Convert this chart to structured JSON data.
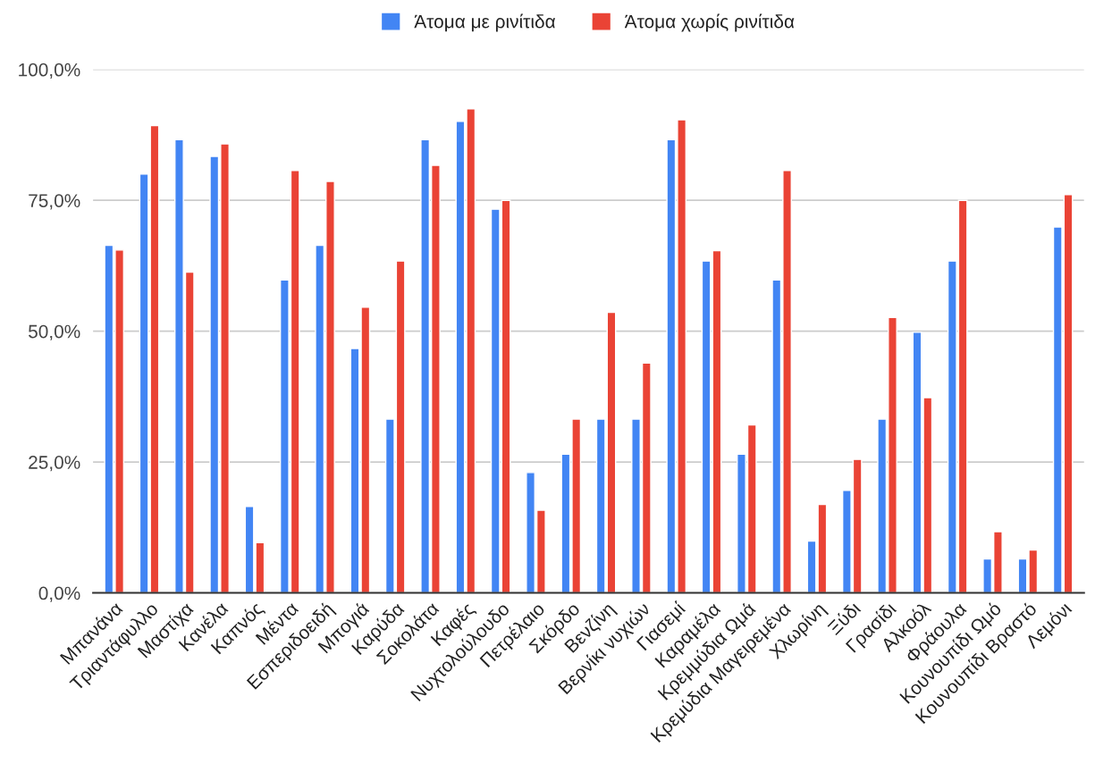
{
  "chart_data": {
    "type": "bar",
    "categories": [
      "Μπανάνα",
      "Τριαντάφυλλο",
      "Μαστίχα",
      "Κανέλα",
      "Καπνός",
      "Μέντα",
      "Εσπεριδοειδή",
      "Μπογιά",
      "Καρύδα",
      "Σοκολάτα",
      "Καφές",
      "Νυχτολούλουδο",
      "Πετρέλαιο",
      "Σκόρδο",
      "Βενζίνη",
      "Βερνίκι νυχιών",
      "Γιασεμί",
      "Καραμέλα",
      "Κρεμμύδια Ωμά",
      "Κρεμύδια Μαγειρεμένα",
      "Χλωρίνη",
      "Ξύδι",
      "Γρασίδι",
      "Αλκοόλ",
      "Φράουλα",
      "Κουνουπίδι Ωμό",
      "Κουνουπίδι Βραστό",
      "Λεμόνι"
    ],
    "series": [
      {
        "name": "Άτομα με ρινίτιδα",
        "color": "#4285f4",
        "values": [
          66.4,
          80.0,
          86.6,
          83.4,
          16.5,
          59.8,
          66.4,
          46.7,
          33.2,
          86.6,
          90.1,
          73.3,
          23.0,
          26.5,
          33.2,
          33.2,
          86.6,
          63.4,
          26.5,
          59.8,
          9.9,
          19.6,
          33.2,
          49.8,
          63.4,
          6.5,
          6.5,
          69.9
        ]
      },
      {
        "name": "Άτομα χωρίς ρινίτιδα",
        "color": "#ea4335",
        "values": [
          65.5,
          89.3,
          61.3,
          85.8,
          9.6,
          80.7,
          78.6,
          54.6,
          63.4,
          81.7,
          92.5,
          75.0,
          15.8,
          33.2,
          53.6,
          43.9,
          90.4,
          65.4,
          32.1,
          80.7,
          16.9,
          25.5,
          52.6,
          37.3,
          75.0,
          11.7,
          8.2,
          76.1
        ]
      }
    ],
    "ylim": [
      0,
      100
    ],
    "yticks": [
      {
        "value": 0,
        "label": "0,0%"
      },
      {
        "value": 25,
        "label": "25,0%"
      },
      {
        "value": 50,
        "label": "50,0%"
      },
      {
        "value": 75,
        "label": "75,0%"
      },
      {
        "value": 100,
        "label": "100,0%"
      }
    ],
    "grid": "y",
    "legend": "top"
  }
}
